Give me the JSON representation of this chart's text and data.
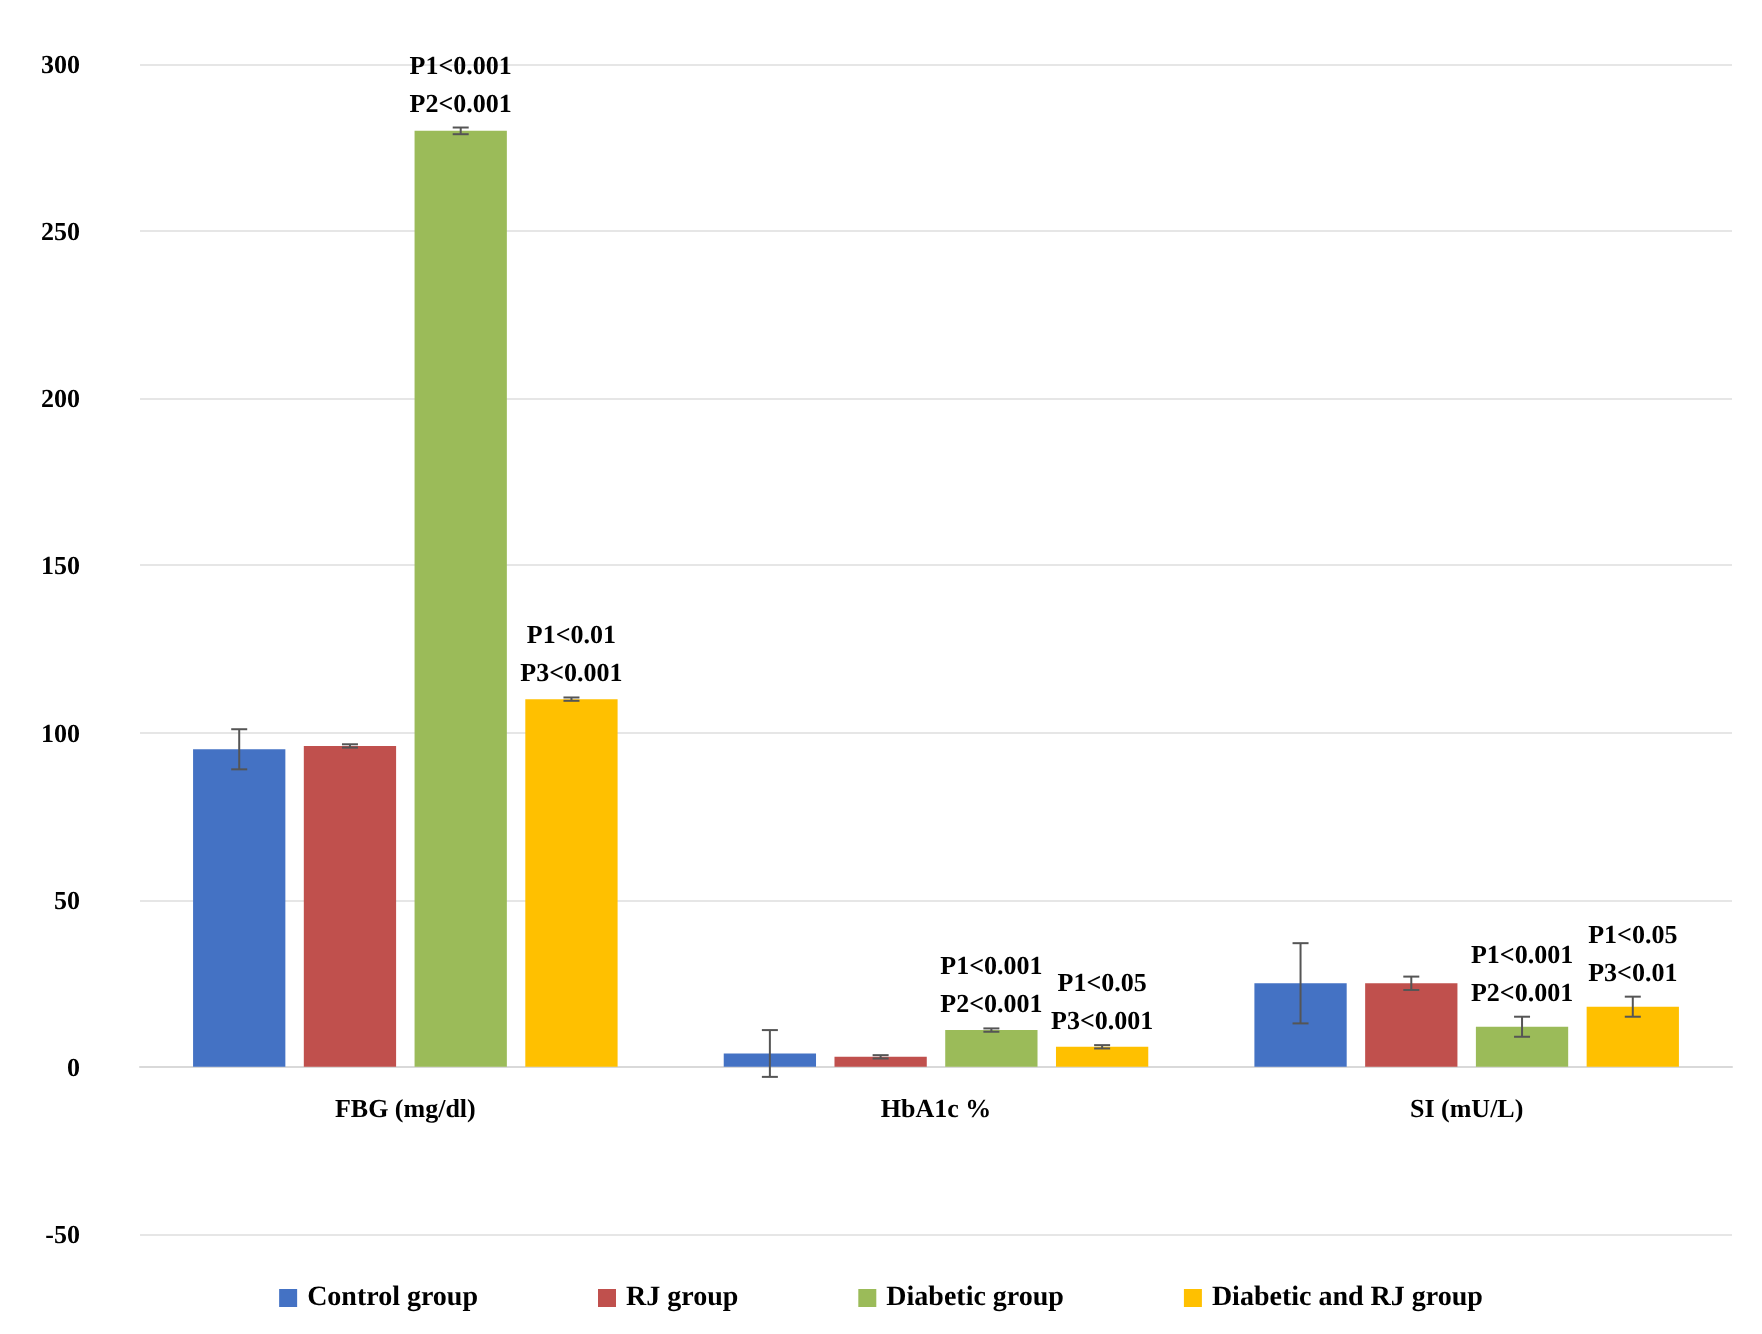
{
  "chart_data": {
    "type": "bar",
    "categories": [
      "FBG (mg/dl)",
      "HbA1c %",
      "SI (mU/L)"
    ],
    "series": [
      {
        "name": "Control group",
        "color": "#4472c4",
        "values": [
          95,
          4,
          25
        ],
        "errors": [
          6,
          7,
          12
        ]
      },
      {
        "name": "RJ group",
        "color": "#c0504d",
        "values": [
          96,
          3,
          25
        ],
        "errors": [
          0.5,
          0.5,
          2
        ]
      },
      {
        "name": "Diabetic group",
        "color": "#9bbb59",
        "values": [
          280,
          11,
          12
        ],
        "errors": [
          1,
          0.5,
          3
        ]
      },
      {
        "name": "Diabetic and RJ group",
        "color": "#ffc000",
        "values": [
          110,
          6,
          18
        ],
        "errors": [
          0.5,
          0.5,
          3
        ]
      }
    ],
    "ylim": [
      -50,
      300
    ],
    "yticks": [
      -50,
      0,
      50,
      100,
      150,
      200,
      250,
      300
    ],
    "grid": "y",
    "legend": "bottom",
    "annotations": [
      {
        "text": "P1<0.001\nP2<0.001",
        "x": "FBG (mg/dl)",
        "y": 280
      },
      {
        "text": "P1<0.01\nP3<0.001",
        "y": 110
      },
      {
        "text": "P1<0.001\nP2<0.001",
        "x": "HbA1c %",
        "y": 11
      },
      {
        "text": "P1<0.05\nP3<0.001",
        "y": 6
      },
      {
        "text": "P1<0.001\nP2<0.001",
        "x": "SI (mU/L)",
        "y": 12
      },
      {
        "text": "P1<0.05\nP3<0.01",
        "y": 18
      }
    ]
  }
}
